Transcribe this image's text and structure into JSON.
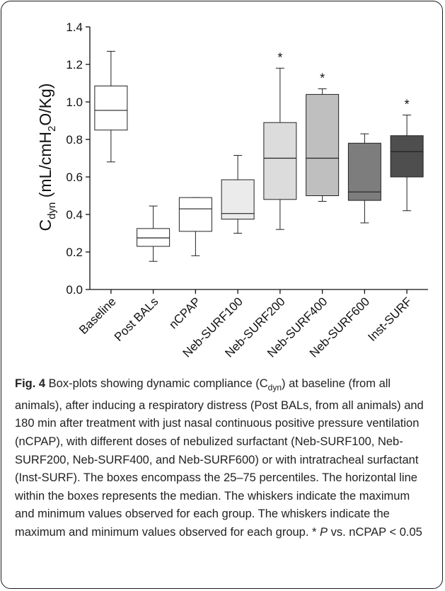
{
  "caption": {
    "label": "Fig. 4",
    "text_before_sub": " Box-plots showing dynamic compliance (C",
    "sub": "dyn",
    "text_after_sub": ") at baseline (from all animals), after inducing a respiratory distress (Post BALs, from all animals) and 180 min after treatment with just nasal continuous positive pressure ventilation (nCPAP), with different doses of nebulized surfactant (Neb-SURF100, Neb-SURF200, Neb-SURF400, and Neb-SURF600) or with intratracheal surfactant (Inst-SURF). The boxes encompass the 25–75 percentiles. The horizontal line within the boxes represents the median. The whiskers indicate the maximum and minimum values observed for each group. The whiskers indicate the maximum and minimum values observed for each group. * ",
    "p_italic": "P",
    "text_end": " vs. nCPAP < 0.05"
  },
  "chart_data": {
    "type": "box",
    "ylabel_main": "C",
    "ylabel_sub": "dyn",
    "ylabel_rest_a": " (mL/cmH",
    "ylabel_sub2": "2",
    "ylabel_rest_b": "O/Kg)",
    "ylim": [
      0.0,
      1.4
    ],
    "yticks": [
      "0.0",
      "0.2",
      "0.4",
      "0.6",
      "0.8",
      "1.0",
      "1.2",
      "1.4"
    ],
    "grid": false,
    "significance_marker": "*",
    "categories": [
      "Baseline",
      "Post BALs",
      "nCPAP",
      "Neb-SURF100",
      "Neb-SURF200",
      "Neb-SURF400",
      "Neb-SURF600",
      "Inst-SURF"
    ],
    "boxes": [
      {
        "name": "Baseline",
        "min": 0.68,
        "q1": 0.85,
        "median": 0.955,
        "q3": 1.085,
        "max": 1.27,
        "color": "#ffffff",
        "significant": false
      },
      {
        "name": "Post BALs",
        "min": 0.15,
        "q1": 0.23,
        "median": 0.275,
        "q3": 0.325,
        "max": 0.445,
        "color": "#ffffff",
        "significant": false
      },
      {
        "name": "nCPAP",
        "min": 0.18,
        "q1": 0.31,
        "median": 0.43,
        "q3": 0.49,
        "max": 0.49,
        "color": "#ffffff",
        "significant": false
      },
      {
        "name": "Neb-SURF100",
        "min": 0.3,
        "q1": 0.375,
        "median": 0.405,
        "q3": 0.585,
        "max": 0.715,
        "color": "#ebebeb",
        "significant": false
      },
      {
        "name": "Neb-SURF200",
        "min": 0.32,
        "q1": 0.48,
        "median": 0.7,
        "q3": 0.89,
        "max": 1.18,
        "color": "#dcdcdc",
        "significant": true
      },
      {
        "name": "Neb-SURF400",
        "min": 0.47,
        "q1": 0.5,
        "median": 0.7,
        "q3": 1.04,
        "max": 1.07,
        "color": "#bfbfbf",
        "significant": true
      },
      {
        "name": "Neb-SURF600",
        "min": 0.355,
        "q1": 0.475,
        "median": 0.52,
        "q3": 0.78,
        "max": 0.83,
        "color": "#7d7d7d",
        "significant": false
      },
      {
        "name": "Inst-SURF",
        "min": 0.42,
        "q1": 0.6,
        "median": 0.735,
        "q3": 0.82,
        "max": 0.93,
        "color": "#4e4e4e",
        "significant": true
      }
    ]
  }
}
